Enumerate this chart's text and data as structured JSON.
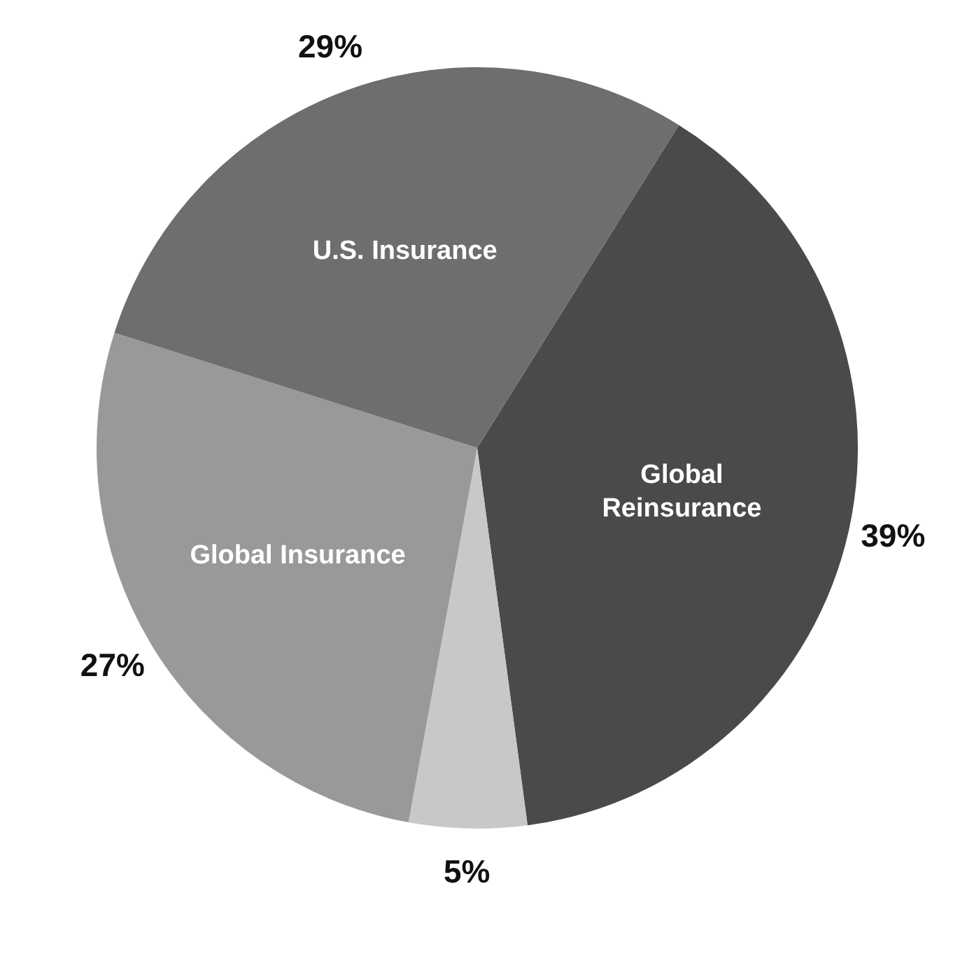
{
  "chart_data": {
    "type": "pie",
    "categories": [
      "Global Reinsurance",
      null,
      "Global Insurance",
      "U.S. Insurance"
    ],
    "values": [
      39,
      5,
      27,
      29
    ],
    "colors": [
      "#4a4a4a",
      "#c8c8c8",
      "#999999",
      "#6e6e6e"
    ],
    "value_labels": [
      "39%",
      "5%",
      "27%",
      "29%"
    ],
    "legend": false
  }
}
